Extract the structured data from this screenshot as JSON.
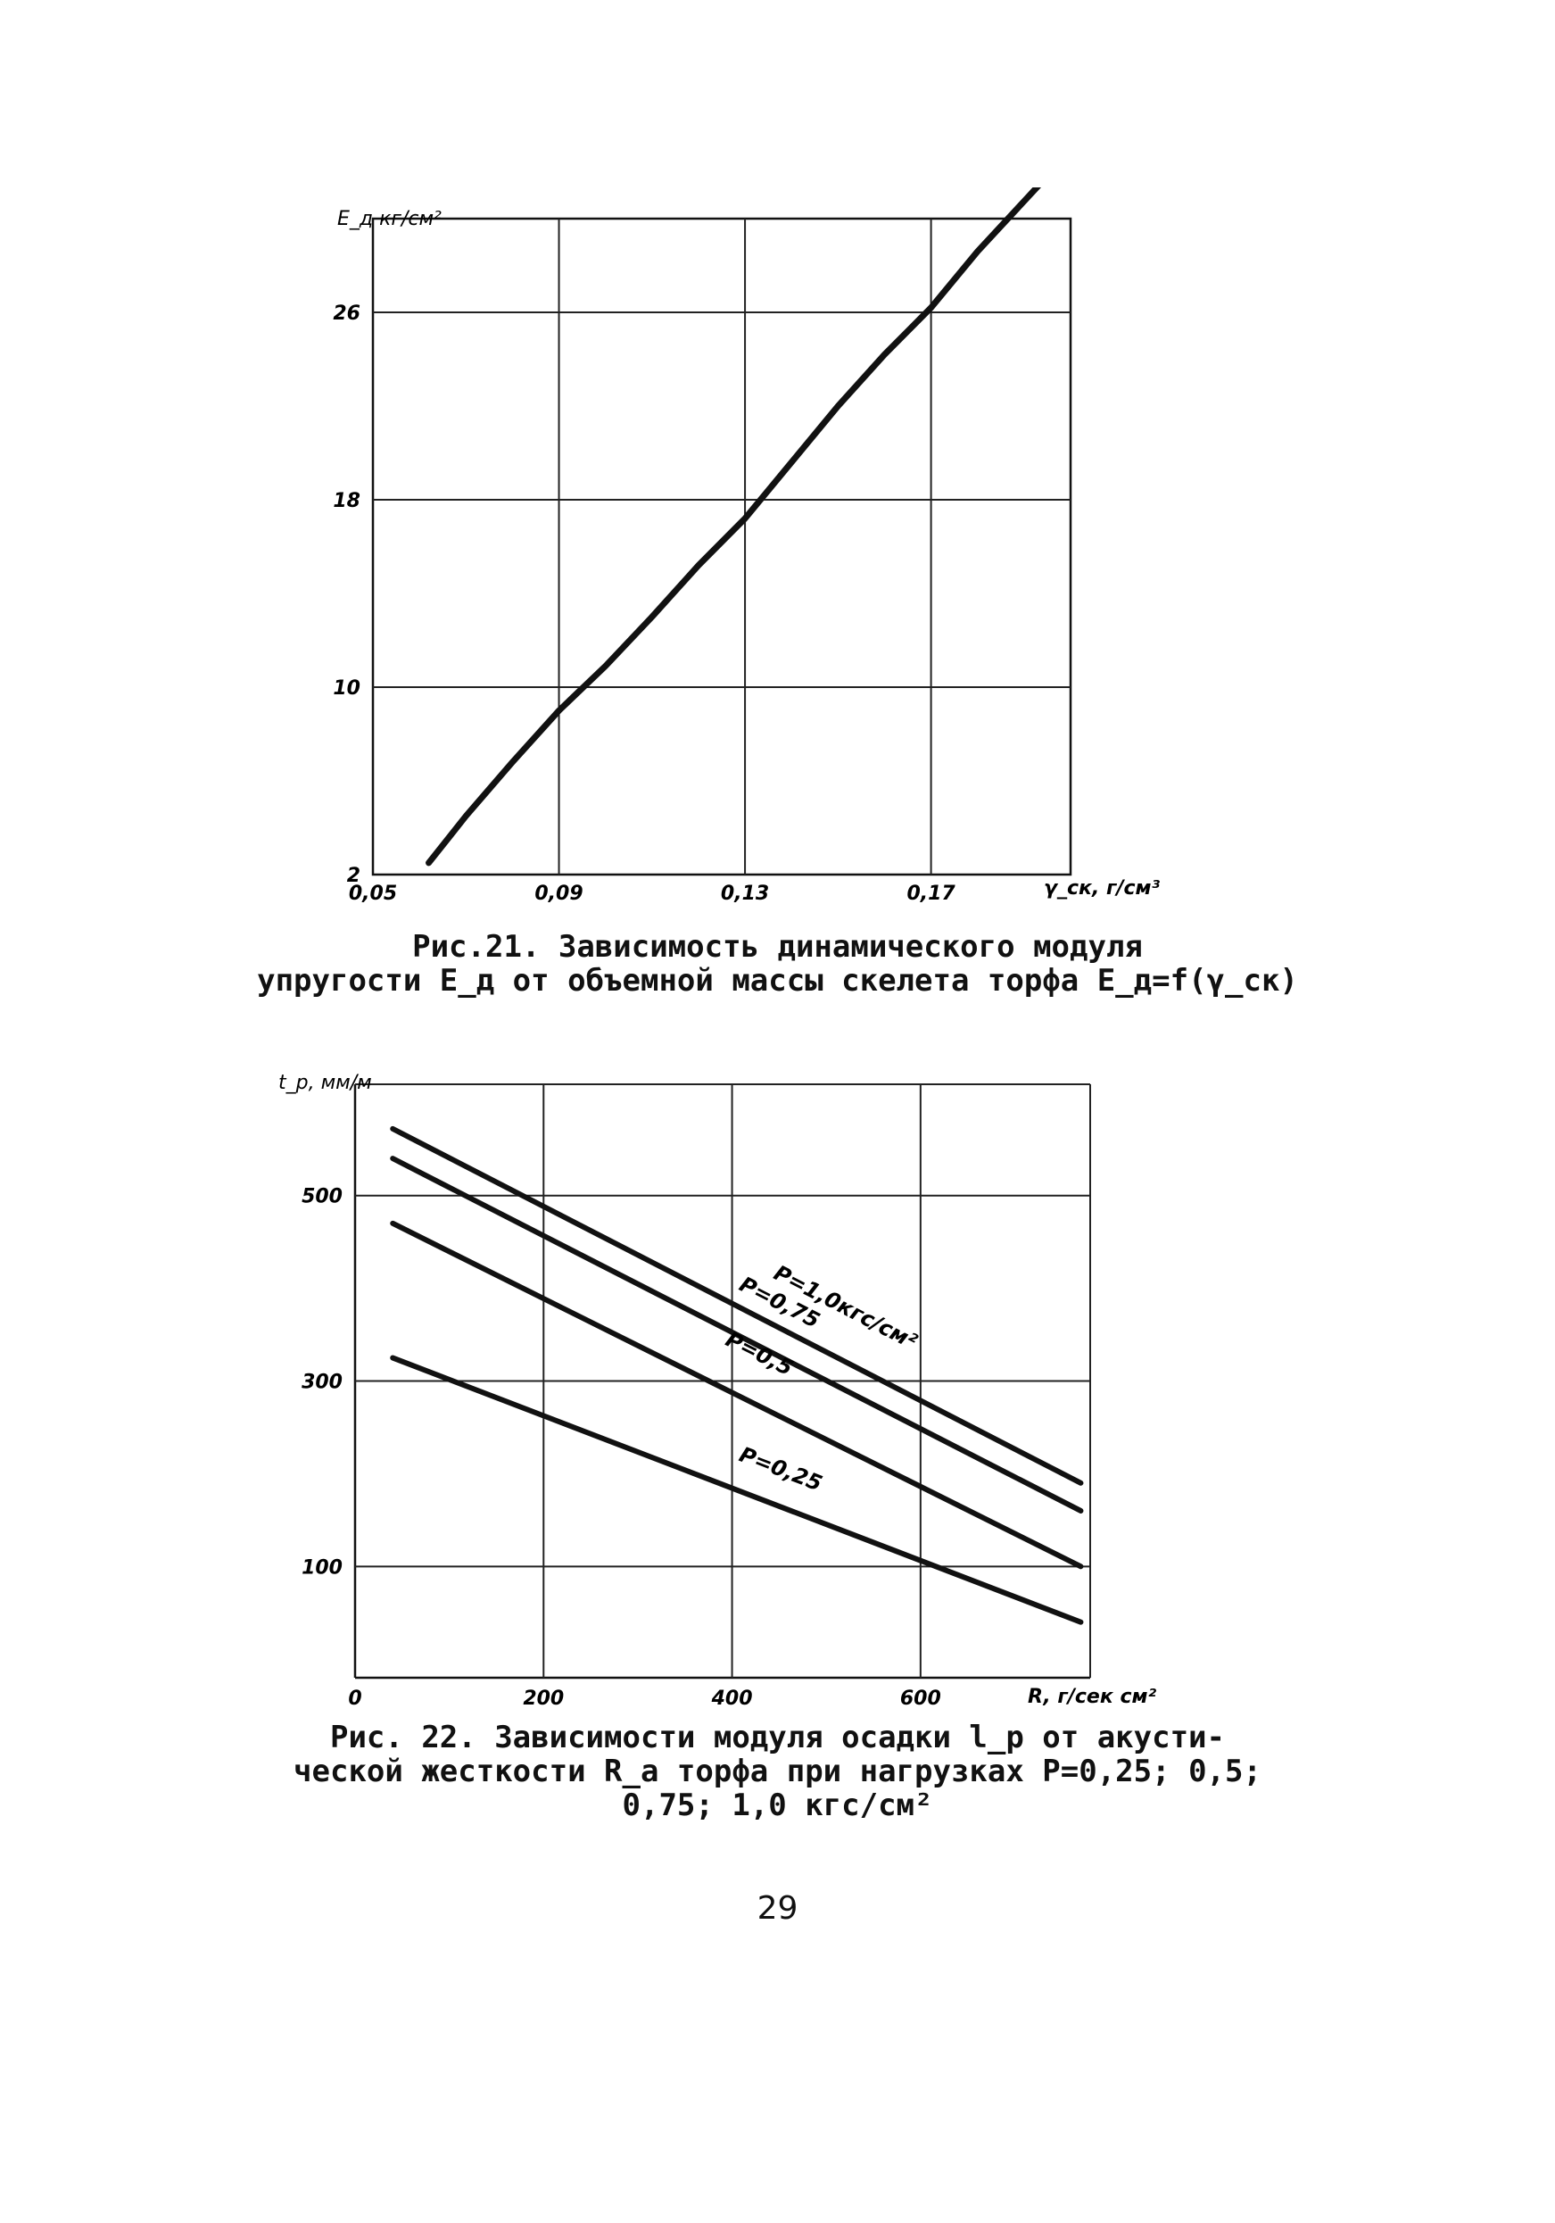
{
  "chart_data": [
    {
      "type": "line",
      "ylabel": "E_д кг/см²",
      "xlabel": "γ_ск, г/см³",
      "x_tick_labels": [
        "0,05",
        "0,09",
        "0,13",
        "0,17"
      ],
      "y_tick_labels": [
        "2",
        "10",
        "18",
        "26"
      ],
      "xlim": [
        0.05,
        0.2
      ],
      "ylim": [
        2,
        30
      ],
      "grid": true,
      "series": [
        {
          "x": [
            0.062,
            0.07,
            0.08,
            0.09,
            0.1,
            0.11,
            0.12,
            0.13,
            0.14,
            0.15,
            0.16,
            0.17,
            0.18,
            0.194
          ],
          "y": [
            2.5,
            4.5,
            6.8,
            9.0,
            10.9,
            13.0,
            15.2,
            17.2,
            19.6,
            22.0,
            24.2,
            26.2,
            28.6,
            31.6
          ]
        }
      ]
    },
    {
      "type": "line",
      "ylabel": "t_p, мм/м",
      "xlabel": "R, г/сек см²",
      "x_tick_labels": [
        "0",
        "200",
        "400",
        "600"
      ],
      "y_tick_labels": [
        "100",
        "300",
        "500"
      ],
      "xlim": [
        0,
        780
      ],
      "ylim": [
        -20,
        620
      ],
      "grid": true,
      "series": [
        {
          "name": "P=1,0кгс/см²",
          "x": [
            40,
            770
          ],
          "y": [
            572,
            190
          ]
        },
        {
          "name": "P=0,75",
          "x": [
            40,
            770
          ],
          "y": [
            540,
            160
          ]
        },
        {
          "name": "P=0,5",
          "x": [
            40,
            770
          ],
          "y": [
            470,
            100
          ]
        },
        {
          "name": "P=0,25",
          "x": [
            40,
            770
          ],
          "y": [
            325,
            40
          ]
        }
      ]
    }
  ],
  "captions": {
    "fig21_line1": "Рис.21. Зависимость динамического модуля",
    "fig21_line2": "упругости E_д от объемной массы скелета торфа E_д=f(γ_ск)",
    "fig22_line1": "Рис. 22. Зависимости модуля осадки l_р от акусти-",
    "fig22_line2": "ческой жесткости R_a торфа при нагрузках P=0,25; 0,5;",
    "fig22_line3": "0,75; 1,0 кгс/см²"
  },
  "page_number": "29"
}
